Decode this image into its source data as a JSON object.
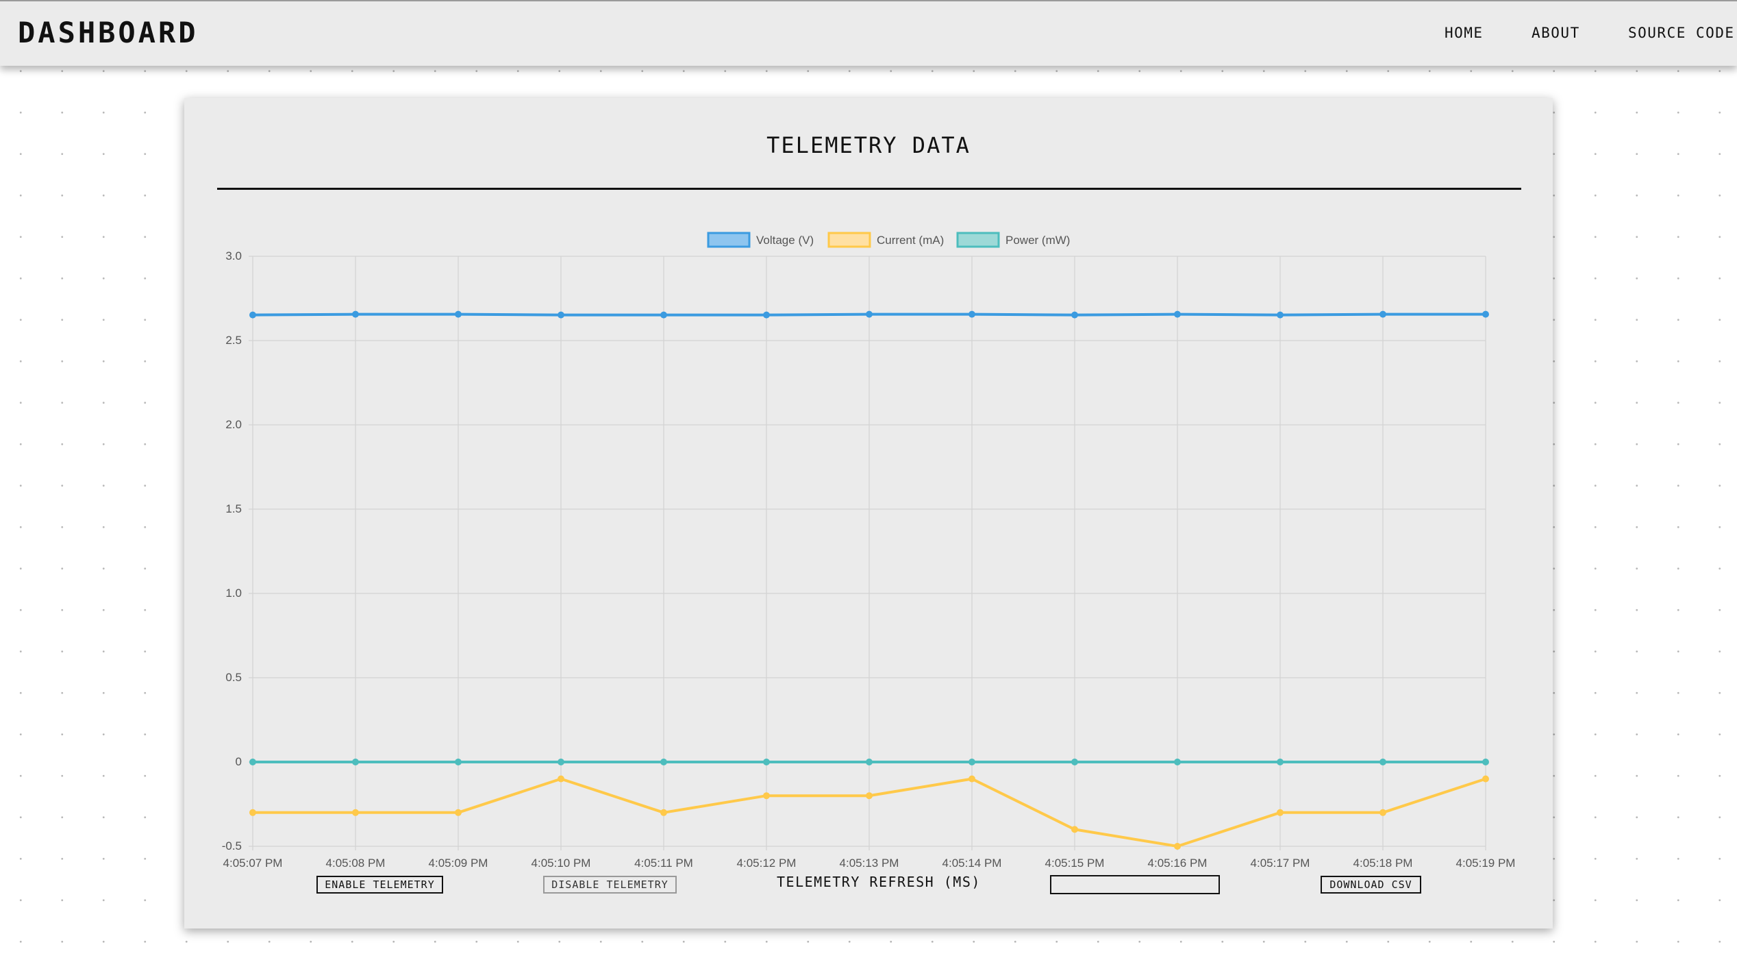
{
  "navbar": {
    "brand": "DASHBOARD",
    "links": [
      "HOME",
      "ABOUT",
      "SOURCE CODE"
    ]
  },
  "card": {
    "title": "TELEMETRY DATA"
  },
  "controls": {
    "enable_label": "ENABLE TELEMETRY",
    "disable_label": "DISABLE TELEMETRY",
    "refresh_label": "TELEMETRY REFRESH (MS)",
    "refresh_value": "",
    "download_label": "DOWNLOAD CSV"
  },
  "chart_data": {
    "type": "line",
    "title": "",
    "xlabel": "",
    "ylabel": "",
    "x": [
      "4:05:07 PM",
      "4:05:08 PM",
      "4:05:09 PM",
      "4:05:10 PM",
      "4:05:11 PM",
      "4:05:12 PM",
      "4:05:13 PM",
      "4:05:14 PM",
      "4:05:15 PM",
      "4:05:16 PM",
      "4:05:17 PM",
      "4:05:18 PM",
      "4:05:19 PM"
    ],
    "yticks": [
      "3.0",
      "2.5",
      "2.0",
      "1.5",
      "1.0",
      "0.5",
      "0",
      "-0.5"
    ],
    "ylim": [
      -0.5,
      3.0
    ],
    "grid": true,
    "legend_position": "top-center",
    "series": [
      {
        "name": "Voltage (V)",
        "color": "#3b9be0",
        "fill": "#8ec5ef",
        "values": [
          2.652,
          2.656,
          2.656,
          2.652,
          2.652,
          2.652,
          2.656,
          2.656,
          2.652,
          2.656,
          2.652,
          2.656,
          2.656
        ]
      },
      {
        "name": "Current (mA)",
        "color": "#ffc94a",
        "fill": "#ffe0a3",
        "values": [
          -0.3,
          -0.3,
          -0.3,
          -0.1,
          -0.3,
          -0.2,
          -0.2,
          -0.1,
          -0.4,
          -0.5,
          -0.3,
          -0.3,
          -0.1
        ]
      },
      {
        "name": "Power (mW)",
        "color": "#4dbdbd",
        "fill": "#9dd9d7",
        "values": [
          0,
          0,
          0,
          0,
          0,
          0,
          0,
          0,
          0,
          0,
          0,
          0,
          0
        ]
      }
    ]
  }
}
